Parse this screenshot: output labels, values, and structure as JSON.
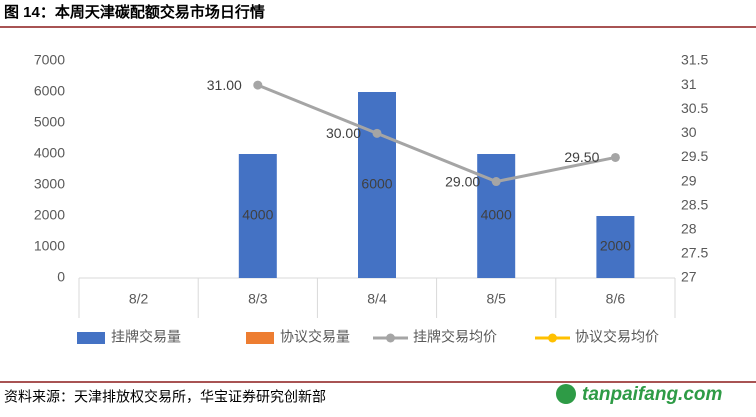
{
  "chart_data": {
    "type": "bar-line",
    "title": "图 14：本周天津碳配额交易市场日行情",
    "source": "资料来源：天津排放权交易所，华宝证券研究创新部",
    "watermark": "tanpaifang.com",
    "categories": [
      "8/2",
      "8/3",
      "8/4",
      "8/5",
      "8/6"
    ],
    "series": [
      {
        "name": "挂牌交易量",
        "type": "bar",
        "color": "#4472c4",
        "values": [
          null,
          4000,
          6000,
          4000,
          2000
        ]
      },
      {
        "name": "协议交易量",
        "type": "bar",
        "color": "#ed7d31",
        "values": [
          null,
          null,
          null,
          null,
          null
        ]
      },
      {
        "name": "挂牌交易均价",
        "type": "line",
        "axis": "y2",
        "color": "#a5a5a5",
        "values": [
          null,
          31,
          30,
          29,
          29.5
        ],
        "value_labels": [
          null,
          "31.00",
          "30.00",
          "29.00",
          "29.50"
        ]
      },
      {
        "name": "协议交易均价",
        "type": "line",
        "axis": "y2",
        "color": "#ffc000",
        "values": [
          null,
          null,
          null,
          null,
          null
        ]
      }
    ],
    "ylim": [
      0,
      7000
    ],
    "yticks": [
      0,
      1000,
      2000,
      3000,
      4000,
      5000,
      6000,
      7000
    ],
    "y2lim": [
      27,
      31.5
    ],
    "y2ticks": [
      27,
      27.5,
      28,
      28.5,
      29,
      29.5,
      30,
      30.5,
      31,
      31.5
    ],
    "legend": "bottom"
  }
}
